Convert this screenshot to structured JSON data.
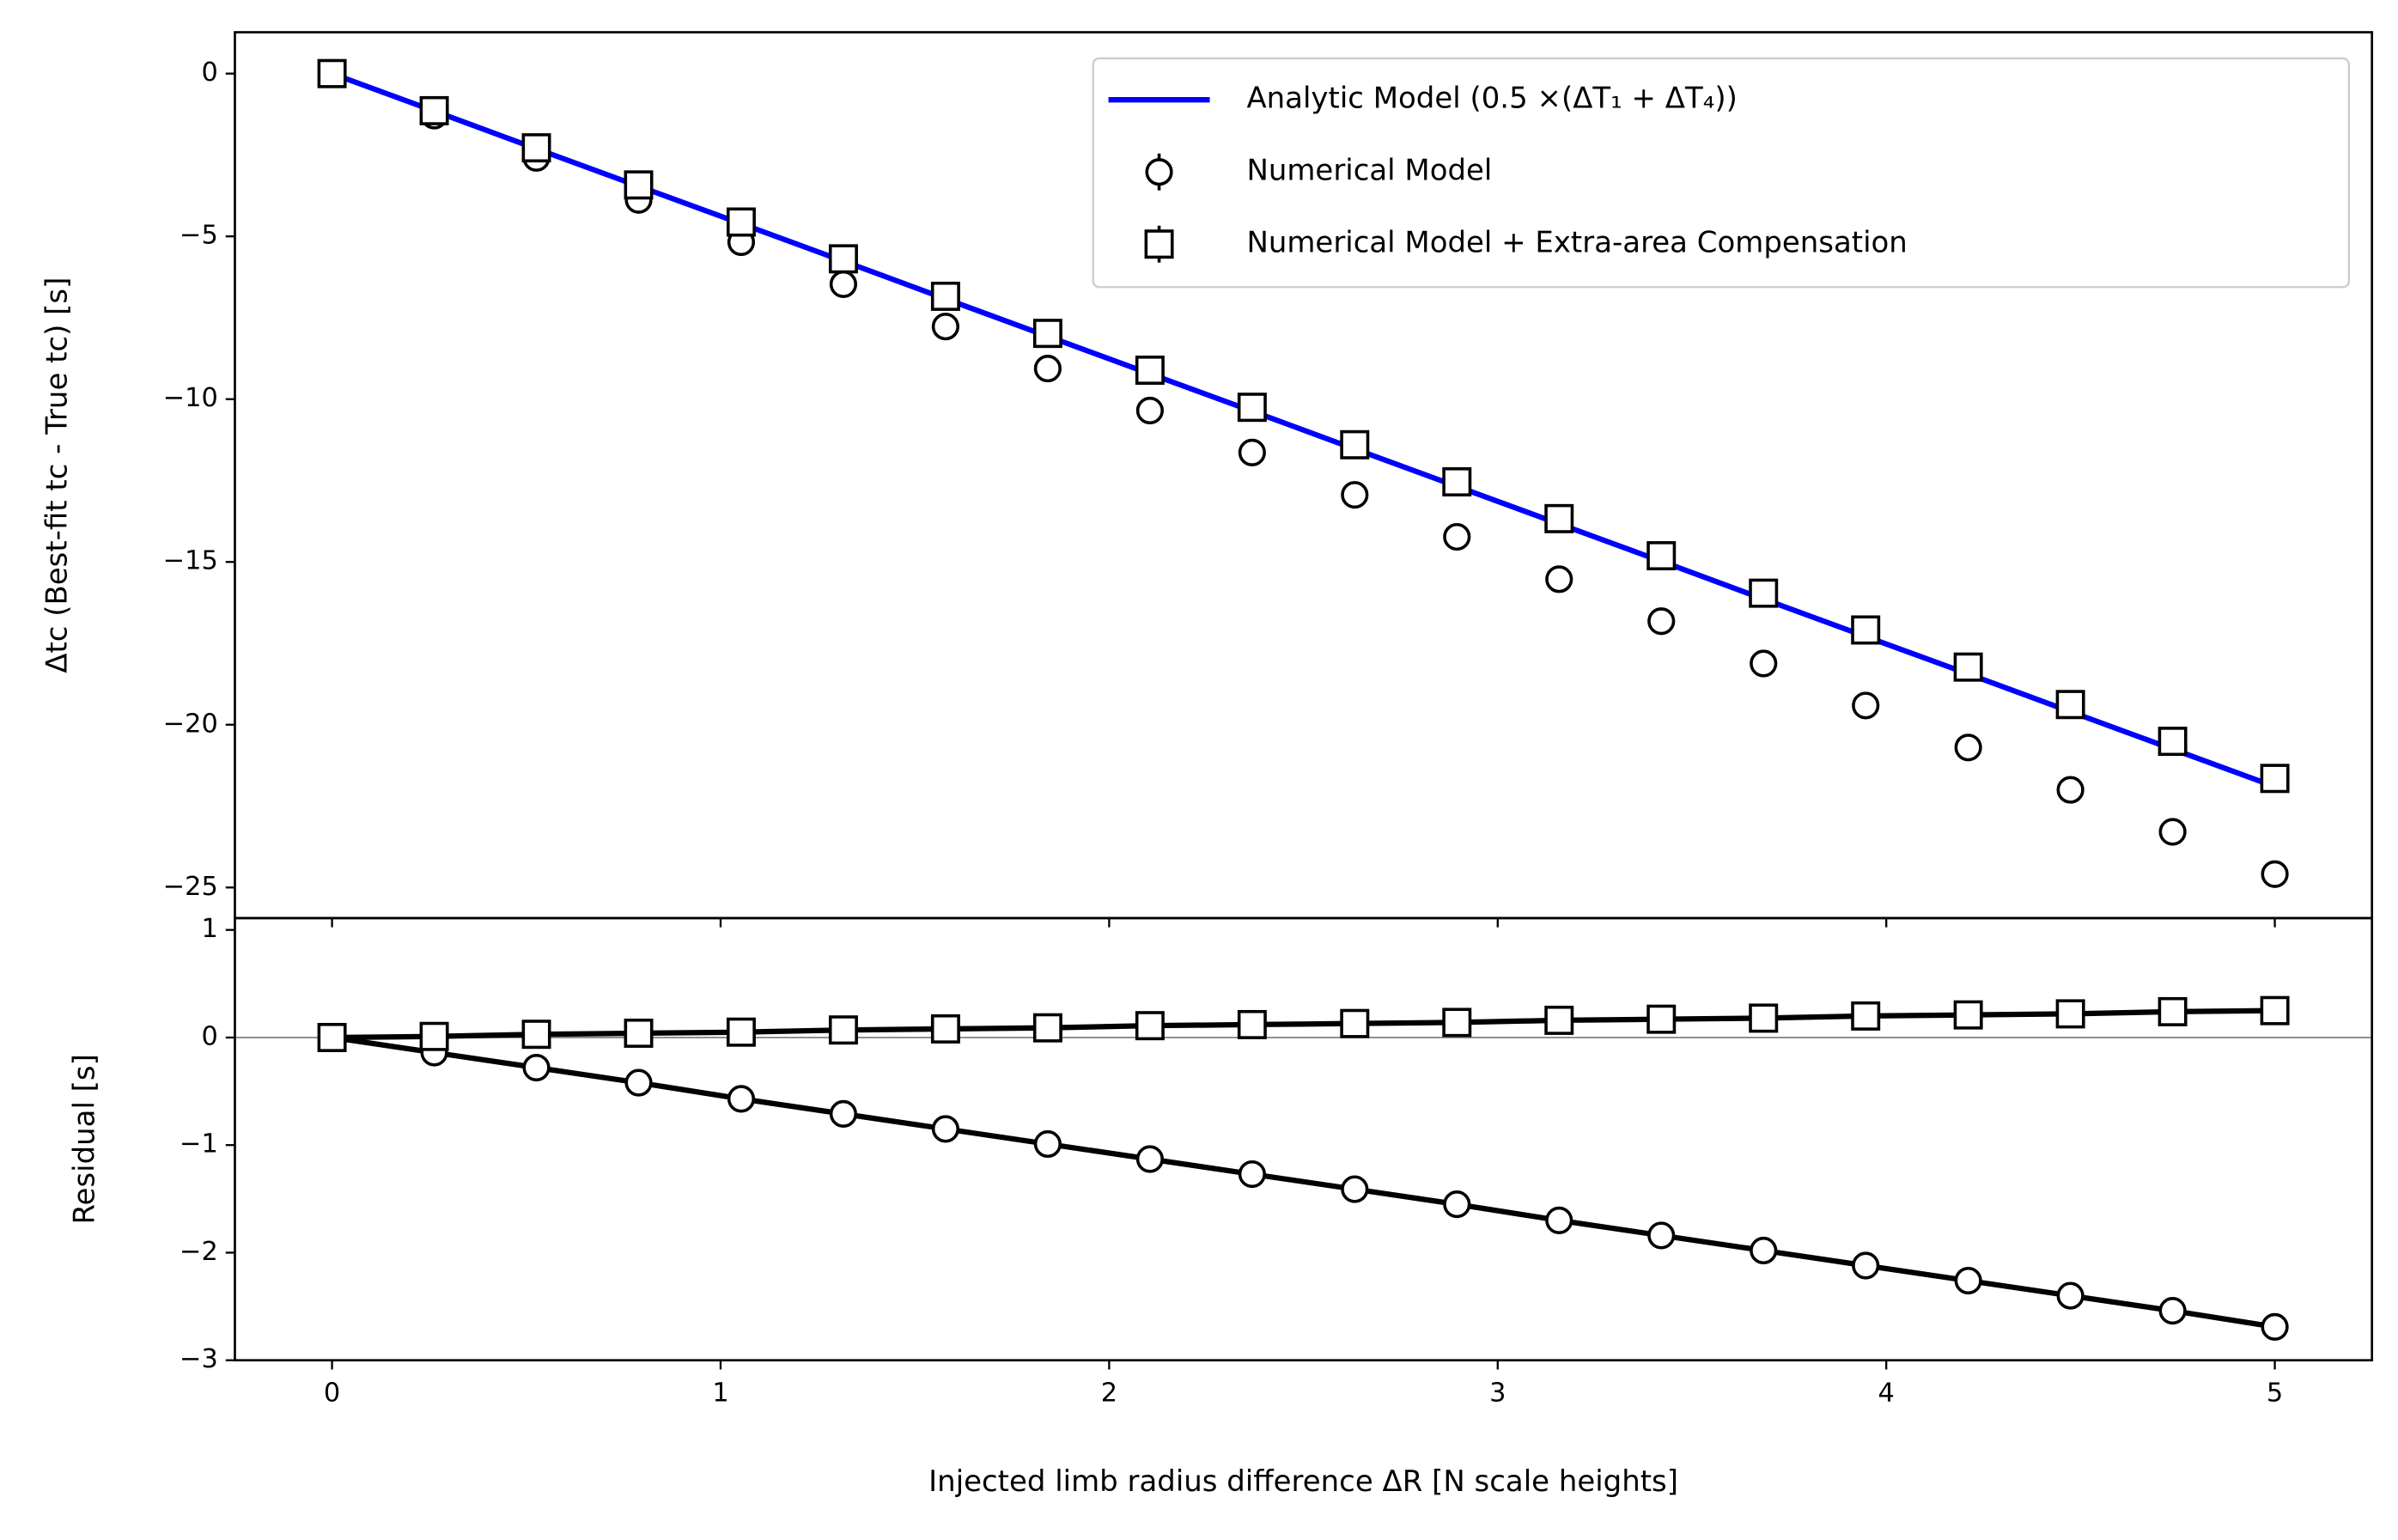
{
  "chart_data": [
    {
      "type": "line",
      "ylabel": "Δtc (Best-fit tc - True tc) [s]",
      "x": [
        0,
        0.263,
        0.526,
        0.789,
        1.053,
        1.316,
        1.579,
        1.842,
        2.105,
        2.368,
        2.632,
        2.895,
        3.158,
        3.421,
        3.684,
        3.947,
        4.211,
        4.474,
        4.737,
        5
      ],
      "xlim": [
        -0.25,
        5.25
      ],
      "xticks": [
        0,
        1,
        2,
        3,
        4,
        5
      ],
      "ylim": [
        -25.94,
        1.27
      ],
      "yticks": [
        0,
        {
          "value": -5,
          "label": "−5"
        },
        {
          "value": -10,
          "label": "−10"
        },
        {
          "value": -15,
          "label": "−15"
        },
        {
          "value": -20,
          "label": "−20"
        },
        {
          "value": -25,
          "label": "−25"
        }
      ],
      "legend": "upper right",
      "series": [
        {
          "name": "Analytic Model (0.5 ×(ΔT₁ + ΔT₄))",
          "color": "#0000ff",
          "line": true,
          "marker": "none",
          "values": [
            0,
            -1.15,
            -2.31,
            -3.46,
            -4.61,
            -5.76,
            -6.92,
            -8.07,
            -9.22,
            -10.37,
            -11.53,
            -12.68,
            -13.83,
            -14.98,
            -16.14,
            -17.29,
            -18.44,
            -19.6,
            -20.75,
            -21.9
          ]
        },
        {
          "name": "Numerical Model",
          "color": "#000000",
          "line": false,
          "marker": "circle",
          "values": [
            0,
            -1.29,
            -2.59,
            -3.88,
            -5.18,
            -6.47,
            -7.77,
            -9.06,
            -10.35,
            -11.64,
            -12.94,
            -14.23,
            -15.53,
            -16.82,
            -18.12,
            -19.41,
            -20.7,
            -22.0,
            -23.29,
            -24.59
          ]
        },
        {
          "name": "Numerical Model + Extra-area Compensation",
          "color": "#000000",
          "line": false,
          "marker": "square",
          "values": [
            0,
            -1.14,
            -2.28,
            -3.42,
            -4.56,
            -5.69,
            -6.84,
            -7.98,
            -9.11,
            -10.25,
            -11.4,
            -12.54,
            -13.67,
            -14.81,
            -15.96,
            -17.09,
            -18.23,
            -19.38,
            -20.51,
            -21.65
          ]
        }
      ]
    },
    {
      "type": "line",
      "xlabel": "Injected limb radius difference ΔR [N scale heights]",
      "ylabel": "Residual [s]",
      "x": [
        0,
        0.263,
        0.526,
        0.789,
        1.053,
        1.316,
        1.579,
        1.842,
        2.105,
        2.368,
        2.632,
        2.895,
        3.158,
        3.421,
        3.684,
        3.947,
        4.211,
        4.474,
        4.737,
        5
      ],
      "xlim": [
        -0.25,
        5.25
      ],
      "xticks": [
        0,
        1,
        2,
        3,
        4,
        5
      ],
      "ylim": [
        -3,
        1.11
      ],
      "yticks": [
        1,
        0,
        {
          "value": -1,
          "label": "−1"
        },
        {
          "value": -2,
          "label": "−2"
        },
        {
          "value": -3,
          "label": "−3"
        }
      ],
      "zero_line": true,
      "series": [
        {
          "color": "#000000",
          "line": true,
          "marker": "circle",
          "values": [
            0,
            -0.14,
            -0.28,
            -0.42,
            -0.57,
            -0.71,
            -0.85,
            -0.99,
            -1.13,
            -1.27,
            -1.41,
            -1.55,
            -1.7,
            -1.84,
            -1.98,
            -2.12,
            -2.26,
            -2.4,
            -2.54,
            -2.69
          ]
        },
        {
          "color": "#000000",
          "line": true,
          "marker": "square",
          "values": [
            0,
            0.01,
            0.03,
            0.04,
            0.05,
            0.07,
            0.08,
            0.09,
            0.11,
            0.12,
            0.13,
            0.14,
            0.16,
            0.17,
            0.18,
            0.2,
            0.21,
            0.22,
            0.24,
            0.25
          ]
        }
      ]
    }
  ]
}
